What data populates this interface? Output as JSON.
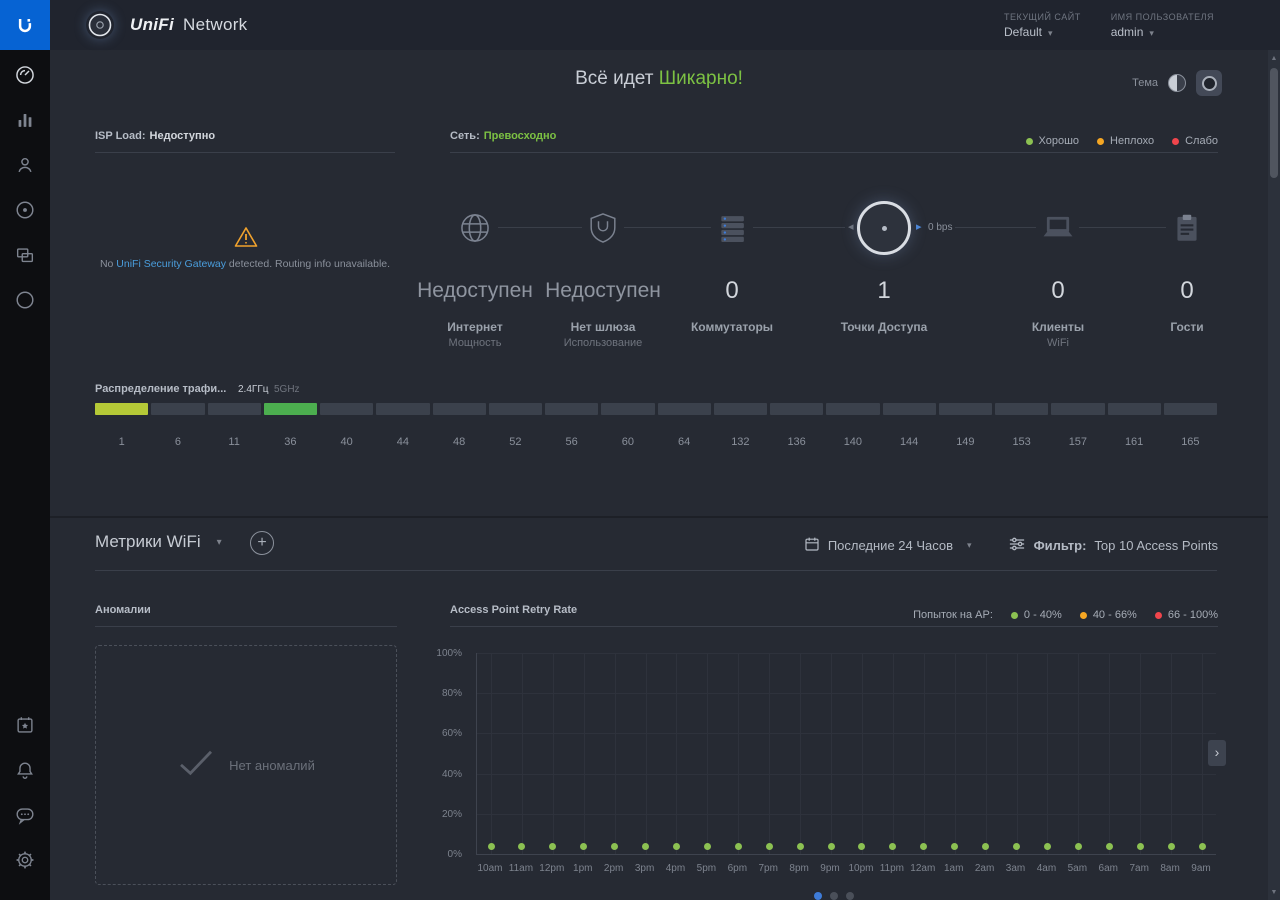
{
  "header": {
    "brand": "UniFi",
    "brand_suffix": "Network",
    "site_label": "ТЕКУЩИЙ САЙТ",
    "site_value": "Default",
    "user_label": "ИМЯ ПОЛЬЗОВАТЕЛЯ",
    "user_value": "admin"
  },
  "hero": {
    "prefix": "Всё идет",
    "highlight": "Шикарно!",
    "theme_label": "Тема"
  },
  "isp_panel": {
    "label": "ISP Load:",
    "value": "Недоступно",
    "warning_prefix": "No",
    "warning_link": "UniFi Security Gateway",
    "warning_suffix": "detected. Routing info unavailable."
  },
  "network_panel": {
    "label": "Сеть:",
    "value": "Превосходно",
    "legend": [
      {
        "label": "Хорошо",
        "color": "#8cc152"
      },
      {
        "label": "Неплохо",
        "color": "#f5a623"
      },
      {
        "label": "Слабо",
        "color": "#f0454c"
      }
    ]
  },
  "devices": {
    "throughput_up": "0 bps",
    "stats": [
      {
        "value": "Недоступен",
        "line1": "Интернет",
        "line2": "Мощность"
      },
      {
        "value": "Недоступен",
        "line1": "Нет шлюза",
        "line2": "Использование"
      },
      {
        "value": "0",
        "line1": "Коммутаторы",
        "line2": ""
      },
      {
        "value": "1",
        "line1": "Точки Доступа",
        "line2": ""
      },
      {
        "value": "0",
        "line1": "Клиенты",
        "line2": "WiFi"
      },
      {
        "value": "0",
        "line1": "Гости",
        "line2": ""
      }
    ]
  },
  "channels": {
    "title": "Распределение трафи...",
    "band_24": "2.4ГГц",
    "band_5": "5GHz",
    "items": [
      {
        "ch": "1",
        "fill": "#b5c937"
      },
      {
        "ch": "6"
      },
      {
        "ch": "11"
      },
      {
        "ch": "36",
        "fill": "#4cae4f"
      },
      {
        "ch": "40"
      },
      {
        "ch": "44"
      },
      {
        "ch": "48"
      },
      {
        "ch": "52"
      },
      {
        "ch": "56"
      },
      {
        "ch": "60"
      },
      {
        "ch": "64"
      },
      {
        "ch": "132"
      },
      {
        "ch": "136"
      },
      {
        "ch": "140"
      },
      {
        "ch": "144"
      },
      {
        "ch": "149"
      },
      {
        "ch": "153"
      },
      {
        "ch": "157"
      },
      {
        "ch": "161"
      },
      {
        "ch": "165"
      }
    ]
  },
  "metrics": {
    "title": "Метрики WiFi",
    "time_range": "Последние 24 Часов",
    "filter_label": "Фильтр:",
    "filter_value": "Top 10 Access Points"
  },
  "anomalies": {
    "title": "Аномалии",
    "empty_text": "Нет аномалий"
  },
  "chart": {
    "title": "Access Point Retry Rate",
    "legend_label": "Попыток на AP:",
    "legend": [
      {
        "label": "0 - 40%",
        "color": "#8cc152"
      },
      {
        "label": "40 - 66%",
        "color": "#f5a623"
      },
      {
        "label": "66 - 100%",
        "color": "#f0454c"
      }
    ]
  },
  "chart_data": {
    "type": "scatter",
    "title": "Access Point Retry Rate",
    "x": [
      "10am",
      "11am",
      "12pm",
      "1pm",
      "2pm",
      "3pm",
      "4pm",
      "5pm",
      "6pm",
      "7pm",
      "8pm",
      "9pm",
      "10pm",
      "11pm",
      "12am",
      "1am",
      "2am",
      "3am",
      "4am",
      "5am",
      "6am",
      "7am",
      "8am",
      "9am"
    ],
    "series": [
      {
        "name": "AP retry rate",
        "color": "#8cc152",
        "values": [
          0,
          0,
          0,
          0,
          0,
          0,
          0,
          0,
          0,
          0,
          0,
          0,
          0,
          0,
          0,
          0,
          0,
          0,
          0,
          0,
          0,
          0,
          0,
          0
        ]
      }
    ],
    "xlabel": "",
    "ylabel": "",
    "ylim": [
      0,
      100
    ],
    "yticks": [
      0,
      20,
      40,
      60,
      80,
      100
    ],
    "grid": true,
    "legend_position": "top-right"
  },
  "pager": {
    "count": 3,
    "active": 0
  },
  "icons": {
    "caret_down": "▾",
    "arrow_left": "◂",
    "arrow_right": "▸",
    "plus": "+",
    "chevron_right": "›",
    "scroll_up": "▲",
    "scroll_down": "▼",
    "checkmark": "✓"
  }
}
